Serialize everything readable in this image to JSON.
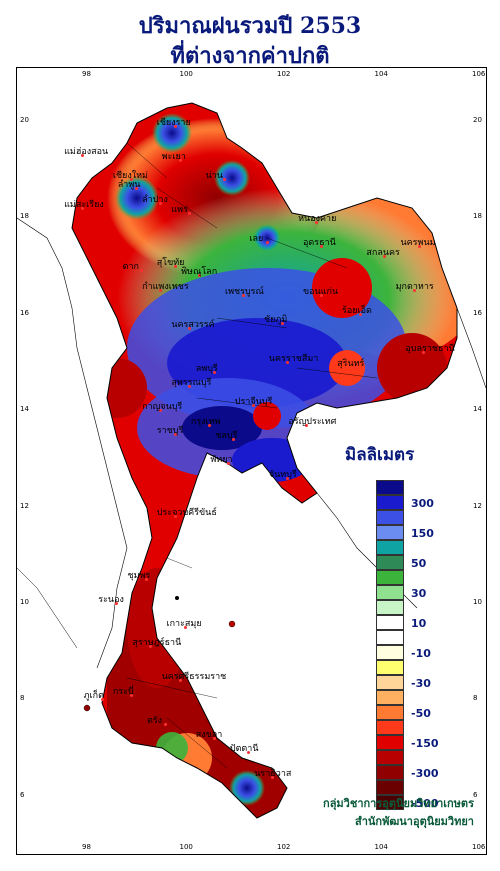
{
  "title_line1": "ปริมาณฝนรวมปี  2553",
  "title_line2": "ที่ต่างจากค่าปกติ",
  "legend": {
    "title": "มิลลิเมตร",
    "items": [
      {
        "label": "",
        "color": "#0a0a8a"
      },
      {
        "label": "300",
        "color": "#1a1acf"
      },
      {
        "label": "",
        "color": "#3c50e6"
      },
      {
        "label": "150",
        "color": "#6b8cf0"
      },
      {
        "label": "",
        "color": "#0fa3a3"
      },
      {
        "label": "50",
        "color": "#2e8b57"
      },
      {
        "label": "",
        "color": "#3cb43c"
      },
      {
        "label": "30",
        "color": "#8fe08f"
      },
      {
        "label": "",
        "color": "#c8f5c8"
      },
      {
        "label": "10",
        "color": "#ffffff"
      },
      {
        "label": "",
        "color": "#ffffff"
      },
      {
        "label": "-10",
        "color": "#ffffe0"
      },
      {
        "label": "",
        "color": "#ffff70"
      },
      {
        "label": "-30",
        "color": "#ffd59a"
      },
      {
        "label": "",
        "color": "#ffb060"
      },
      {
        "label": "-50",
        "color": "#ff7a33"
      },
      {
        "label": "",
        "color": "#ff3a1a"
      },
      {
        "label": "-150",
        "color": "#e00000"
      },
      {
        "label": "",
        "color": "#b80000"
      },
      {
        "label": "-300",
        "color": "#900000"
      },
      {
        "label": "",
        "color": "#6a0000"
      },
      {
        "label": "-500",
        "color": "#4a0000"
      }
    ]
  },
  "axes": {
    "lon_ticks": [
      "98",
      "100",
      "102",
      "104",
      "106"
    ],
    "lat_ticks": [
      "20",
      "18",
      "16",
      "14",
      "12",
      "10",
      "8",
      "6"
    ]
  },
  "places": [
    {
      "name": "เชียงราย",
      "lon": 99.8,
      "lat": 19.9
    },
    {
      "name": "แม่ฮ่องสอน",
      "lon": 97.9,
      "lat": 19.3
    },
    {
      "name": "พะเยา",
      "lon": 99.9,
      "lat": 19.2
    },
    {
      "name": "เชียงใหม่",
      "lon": 98.9,
      "lat": 18.8
    },
    {
      "name": "น่าน",
      "lon": 100.8,
      "lat": 18.8
    },
    {
      "name": "ลำพูน",
      "lon": 99.0,
      "lat": 18.6
    },
    {
      "name": "ลำปาง",
      "lon": 99.5,
      "lat": 18.3
    },
    {
      "name": "แพร่",
      "lon": 100.1,
      "lat": 18.1
    },
    {
      "name": "แม่สะเรียง",
      "lon": 97.9,
      "lat": 18.2
    },
    {
      "name": "หนองคาย",
      "lon": 102.7,
      "lat": 17.9
    },
    {
      "name": "อุดรธานี",
      "lon": 102.8,
      "lat": 17.4
    },
    {
      "name": "นครพนม",
      "lon": 104.8,
      "lat": 17.4
    },
    {
      "name": "สกลนคร",
      "lon": 104.1,
      "lat": 17.2
    },
    {
      "name": "เลย",
      "lon": 101.7,
      "lat": 17.5
    },
    {
      "name": "ตาก",
      "lon": 99.1,
      "lat": 16.9
    },
    {
      "name": "สุโขทัย",
      "lon": 99.8,
      "lat": 17.0
    },
    {
      "name": "พิษณุโลก",
      "lon": 100.3,
      "lat": 16.8
    },
    {
      "name": "มุกดาหาร",
      "lon": 104.7,
      "lat": 16.5
    },
    {
      "name": "ขอนแก่น",
      "lon": 102.8,
      "lat": 16.4
    },
    {
      "name": "กำแพงเพชร",
      "lon": 99.5,
      "lat": 16.5
    },
    {
      "name": "เพชรบูรณ์",
      "lon": 101.2,
      "lat": 16.4
    },
    {
      "name": "นครสวรรค์",
      "lon": 100.1,
      "lat": 15.7
    },
    {
      "name": "ชัยภูมิ",
      "lon": 102.0,
      "lat": 15.8
    },
    {
      "name": "ร้อยเอ็ด",
      "lon": 103.6,
      "lat": 16.0
    },
    {
      "name": "อุบลราชธานี",
      "lon": 104.9,
      "lat": 15.2
    },
    {
      "name": "ลพบุรี",
      "lon": 100.6,
      "lat": 14.8
    },
    {
      "name": "นครราชสีมา",
      "lon": 102.1,
      "lat": 15.0
    },
    {
      "name": "สุรินทร์",
      "lon": 103.5,
      "lat": 14.9
    },
    {
      "name": "สุพรรณบุรี",
      "lon": 100.1,
      "lat": 14.5
    },
    {
      "name": "กาญจนบุรี",
      "lon": 99.5,
      "lat": 14.0
    },
    {
      "name": "ปราจีนบุรี",
      "lon": 101.4,
      "lat": 14.1
    },
    {
      "name": "อรัญประเทศ",
      "lon": 102.5,
      "lat": 13.7
    },
    {
      "name": "กรุงเทพ",
      "lon": 100.5,
      "lat": 13.7
    },
    {
      "name": "ราชบุรี",
      "lon": 99.8,
      "lat": 13.5
    },
    {
      "name": "ชลบุรี",
      "lon": 101.0,
      "lat": 13.4
    },
    {
      "name": "พัทยา",
      "lon": 100.9,
      "lat": 12.9
    },
    {
      "name": "จันทบุรี",
      "lon": 102.1,
      "lat": 12.6
    },
    {
      "name": "ประจวบคีรีขันธ์",
      "lon": 99.8,
      "lat": 11.8
    },
    {
      "name": "ชุมพร",
      "lon": 99.2,
      "lat": 10.5
    },
    {
      "name": "ระนอง",
      "lon": 98.6,
      "lat": 10.0
    },
    {
      "name": "เกาะสมุย",
      "lon": 100.0,
      "lat": 9.5
    },
    {
      "name": "สุราษฎร์ธานี",
      "lon": 99.3,
      "lat": 9.1
    },
    {
      "name": "ภูเก็ต",
      "lon": 98.3,
      "lat": 8.0
    },
    {
      "name": "นครศรีธรรมราช",
      "lon": 99.9,
      "lat": 8.4
    },
    {
      "name": "กระบี่",
      "lon": 98.9,
      "lat": 8.1
    },
    {
      "name": "ตรัง",
      "lon": 99.6,
      "lat": 7.5
    },
    {
      "name": "สงขลา",
      "lon": 100.6,
      "lat": 7.2
    },
    {
      "name": "ปัตตานี",
      "lon": 101.3,
      "lat": 6.9
    },
    {
      "name": "นราธิวาส",
      "lon": 101.8,
      "lat": 6.4
    }
  ],
  "footer": {
    "line1": "กลุ่มวิชาการอุตุนิยมวิทยาเกษตร",
    "line2": "สำนักพัฒนาอุตุนิยมวิทยา"
  }
}
